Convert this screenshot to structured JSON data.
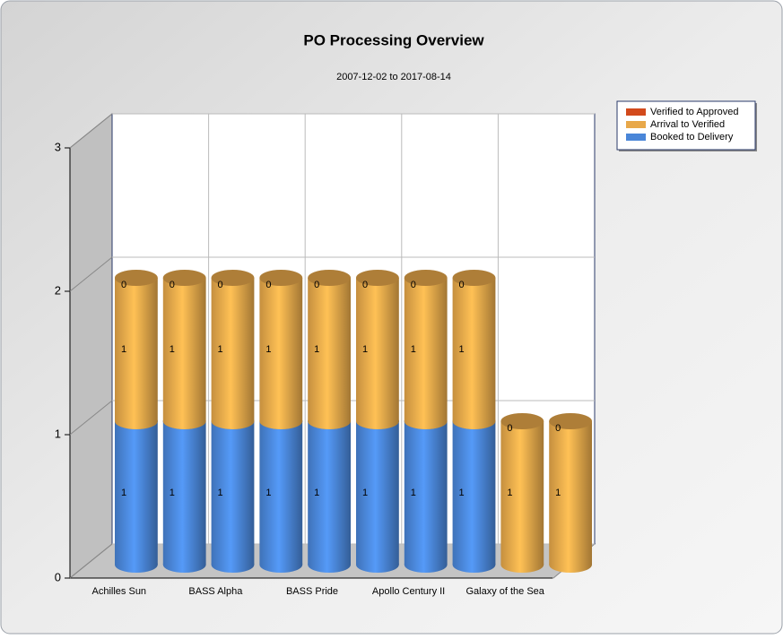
{
  "chart_data": {
    "type": "bar3d",
    "stacked": true,
    "title": "PO Processing Overview",
    "subtitle": "2007-12-02 to 2017-08-14",
    "categories": [
      "Achilles Sun",
      null,
      "BASS Alpha",
      null,
      "BASS Pride",
      null,
      "Apollo Century II",
      null,
      "Galaxy of the Sea",
      null
    ],
    "series": [
      {
        "name": "Booked to Delivery",
        "color": "#4a86d8",
        "values": [
          1,
          1,
          1,
          1,
          1,
          1,
          1,
          1,
          0,
          0
        ]
      },
      {
        "name": "Arrival to Verified",
        "color": "#e8a84a",
        "values": [
          1,
          1,
          1,
          1,
          1,
          1,
          1,
          1,
          1,
          1
        ]
      },
      {
        "name": "Verified to Approved",
        "color": "#d24a1c",
        "values": [
          0,
          0,
          0,
          0,
          0,
          0,
          0,
          0,
          0,
          0
        ]
      }
    ],
    "ylim": [
      0,
      3
    ],
    "yticks": [
      0,
      1,
      2,
      3
    ],
    "grid": true,
    "legend": "top-right"
  }
}
